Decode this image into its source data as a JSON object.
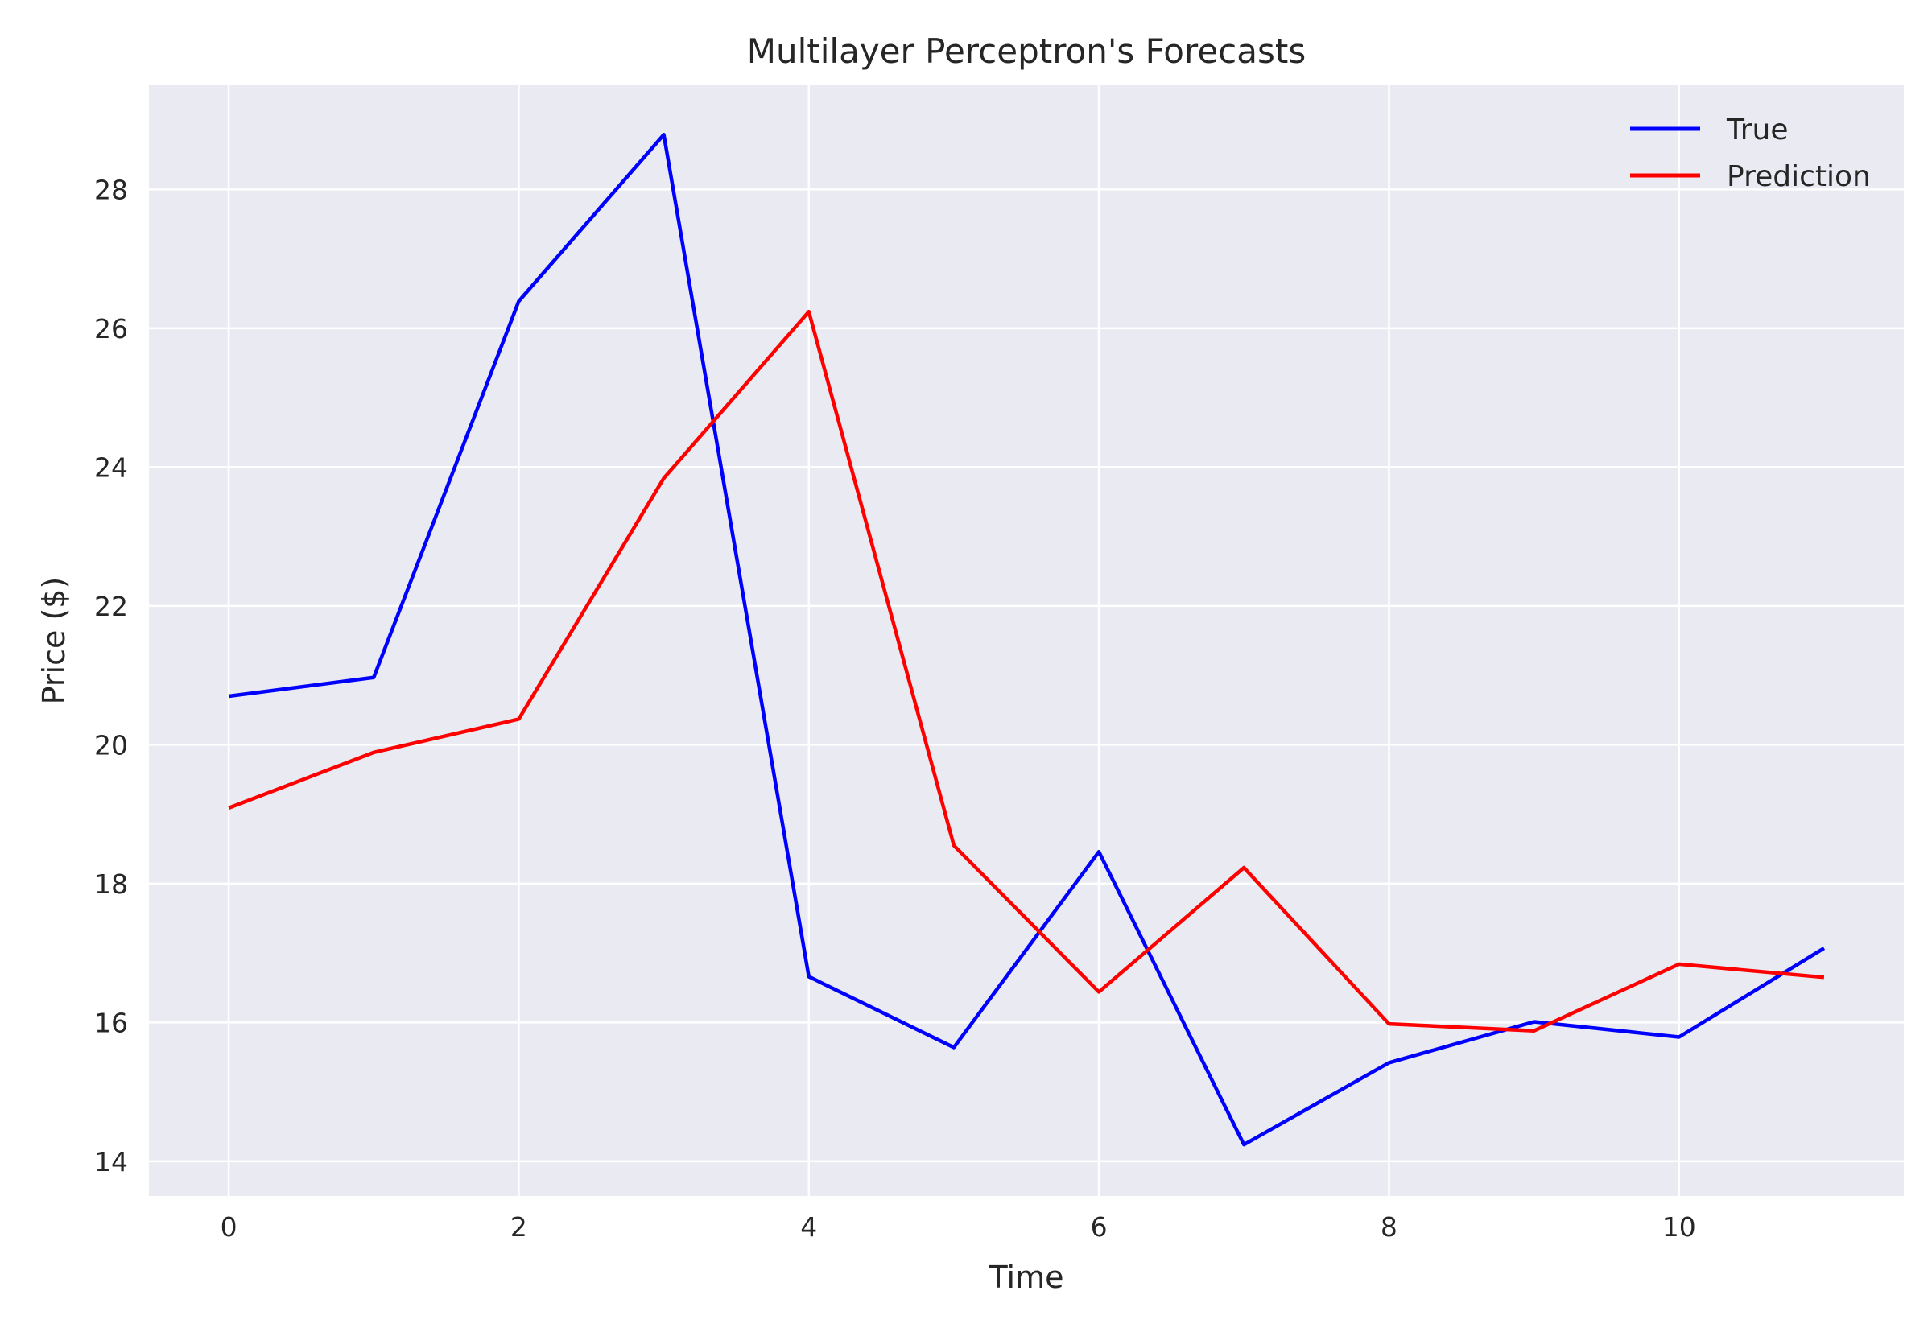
{
  "chart_data": {
    "type": "line",
    "title": "Multilayer Perceptron's Forecasts",
    "xlabel": "Time",
    "ylabel": "Price ($)",
    "x": [
      0,
      1,
      2,
      3,
      4,
      5,
      6,
      7,
      8,
      9,
      10,
      11
    ],
    "xlim": [
      -0.55,
      11.55
    ],
    "ylim": [
      13.5,
      29.5
    ],
    "xticks": [
      0,
      2,
      4,
      6,
      8,
      10
    ],
    "yticks": [
      14,
      16,
      18,
      20,
      22,
      24,
      26,
      28
    ],
    "grid": true,
    "legend_position": "top-right",
    "background_color": "#eaeaf2",
    "grid_color": "#ffffff",
    "series": [
      {
        "name": "True",
        "color": "#0000ff",
        "values": [
          20.7,
          20.97,
          26.39,
          28.79,
          16.66,
          15.64,
          18.46,
          14.24,
          15.42,
          16.01,
          15.79,
          17.07
        ]
      },
      {
        "name": "Prediction",
        "color": "#ff0000",
        "values": [
          19.09,
          19.89,
          20.37,
          23.84,
          26.24,
          18.55,
          16.44,
          18.23,
          15.98,
          15.88,
          16.84,
          16.65
        ]
      }
    ]
  }
}
